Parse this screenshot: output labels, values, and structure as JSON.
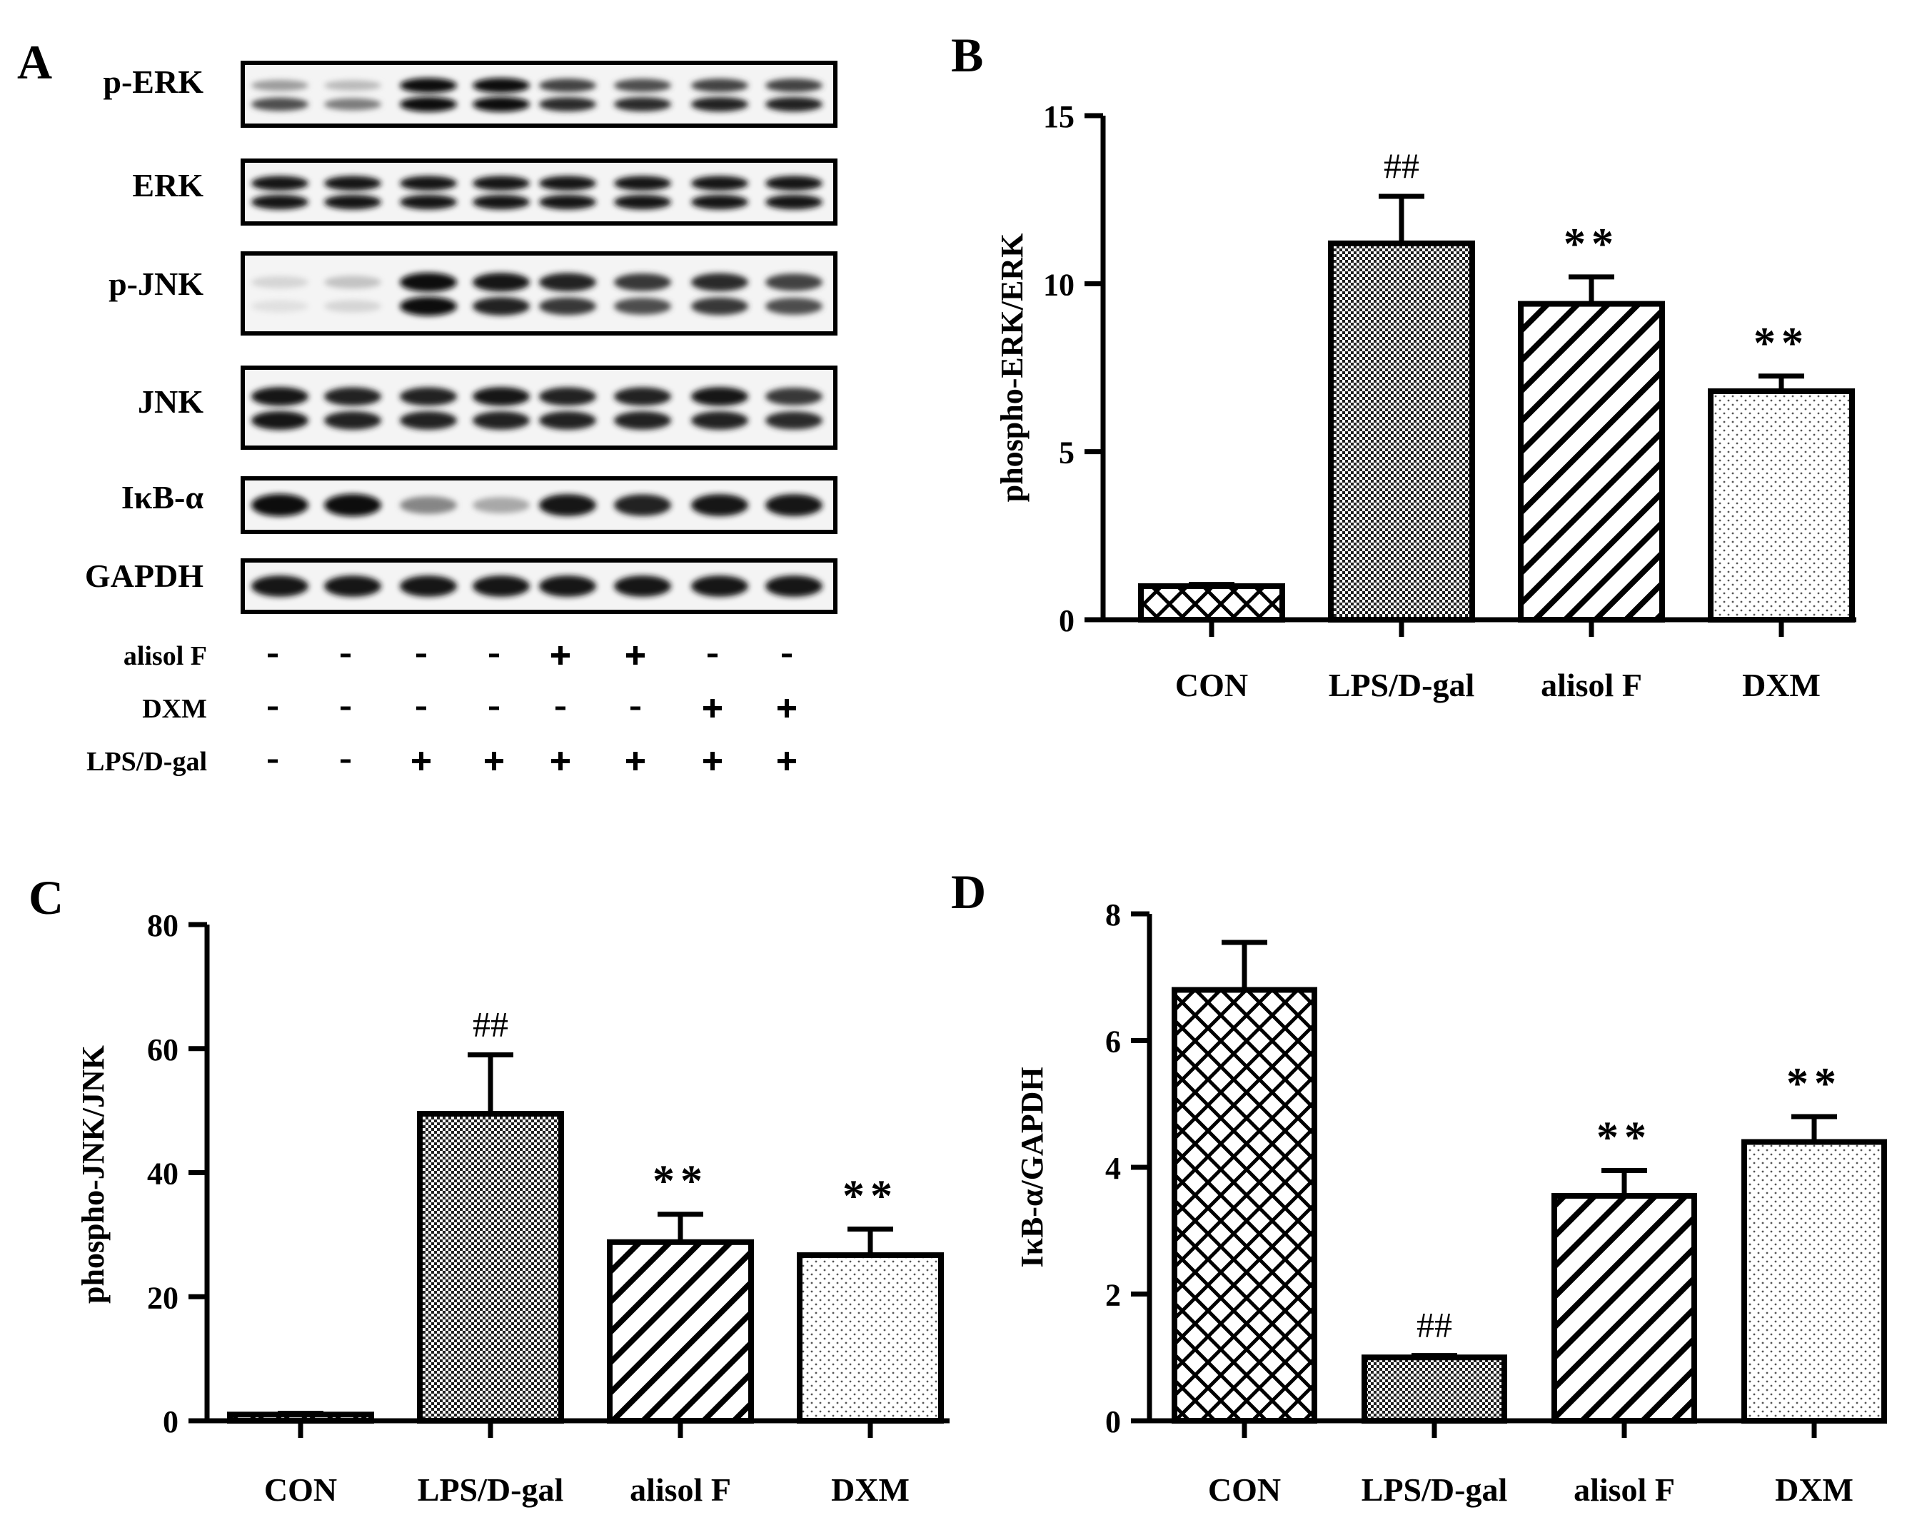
{
  "panel_letters": [
    "A",
    "B",
    "C",
    "D"
  ],
  "blot": {
    "rows": [
      {
        "label": "p-ERK",
        "lanes": [
          [
            0.35,
            0.7
          ],
          [
            0.22,
            0.5
          ],
          [
            1,
            1
          ],
          [
            1,
            1
          ],
          [
            0.75,
            0.85
          ],
          [
            0.7,
            0.85
          ],
          [
            0.75,
            0.9
          ],
          [
            0.75,
            0.9
          ]
        ]
      },
      {
        "label": "ERK",
        "lanes": [
          [
            0.95,
            0.95
          ],
          [
            0.95,
            0.95
          ],
          [
            0.95,
            0.95
          ],
          [
            0.95,
            0.95
          ],
          [
            0.95,
            0.95
          ],
          [
            0.95,
            0.95
          ],
          [
            0.95,
            0.95
          ],
          [
            0.95,
            0.95
          ]
        ]
      },
      {
        "label": "p-JNK",
        "lanes": [
          [
            0.1,
            0.05
          ],
          [
            0.18,
            0.1
          ],
          [
            1,
            1
          ],
          [
            0.95,
            0.9
          ],
          [
            0.9,
            0.8
          ],
          [
            0.8,
            0.7
          ],
          [
            0.85,
            0.8
          ],
          [
            0.75,
            0.7
          ]
        ]
      },
      {
        "label": "JNK",
        "lanes": [
          [
            0.95,
            0.95
          ],
          [
            0.9,
            0.9
          ],
          [
            0.9,
            0.9
          ],
          [
            0.95,
            0.9
          ],
          [
            0.9,
            0.9
          ],
          [
            0.9,
            0.9
          ],
          [
            0.95,
            0.9
          ],
          [
            0.8,
            0.85
          ]
        ]
      },
      {
        "label": "IκB-α",
        "lanes": [
          [
            1
          ],
          [
            1
          ],
          [
            0.45
          ],
          [
            0.3
          ],
          [
            0.95
          ],
          [
            0.9
          ],
          [
            0.95
          ],
          [
            0.95
          ]
        ]
      },
      {
        "label": "GAPDH",
        "lanes": [
          [
            0.95
          ],
          [
            0.95
          ],
          [
            0.95
          ],
          [
            0.95
          ],
          [
            0.95
          ],
          [
            0.95
          ],
          [
            0.95
          ],
          [
            0.95
          ]
        ]
      }
    ],
    "treatments": [
      {
        "label": "alisol F",
        "signs": [
          "-",
          "-",
          "-",
          "-",
          "+",
          "+",
          "-",
          "-"
        ]
      },
      {
        "label": "DXM",
        "signs": [
          "-",
          "-",
          "-",
          "-",
          "-",
          "-",
          "+",
          "+"
        ]
      },
      {
        "label": "LPS/D-gal",
        "signs": [
          "-",
          "-",
          "+",
          "+",
          "+",
          "+",
          "+",
          "+"
        ]
      }
    ]
  },
  "chart_data": [
    {
      "panel": "B",
      "type": "bar",
      "ylabel": "phospho-ERK/ERK",
      "categories": [
        "CON",
        "LPS/D-gal",
        "alisol F",
        "DXM"
      ],
      "values": [
        1.0,
        11.2,
        9.4,
        6.8
      ],
      "errors": [
        0.05,
        1.4,
        0.8,
        0.45
      ],
      "annotations": [
        "",
        "##",
        "**",
        "**"
      ],
      "patterns": [
        "crosshatch",
        "dense-dots",
        "diagonal",
        "sparse-dots"
      ],
      "ylim": [
        0,
        15
      ],
      "yticks": [
        0,
        5,
        10,
        15
      ]
    },
    {
      "panel": "C",
      "type": "bar",
      "ylabel": "phospho-JNK/JNK",
      "categories": [
        "CON",
        "LPS/D-gal",
        "alisol F",
        "DXM"
      ],
      "values": [
        1.0,
        49.5,
        28.8,
        26.7
      ],
      "errors": [
        0.2,
        9.5,
        4.5,
        4.2
      ],
      "annotations": [
        "",
        "##",
        "**",
        "**"
      ],
      "patterns": [
        "crosshatch",
        "dense-dots",
        "diagonal",
        "sparse-dots"
      ],
      "ylim": [
        0,
        80
      ],
      "yticks": [
        0,
        20,
        40,
        60,
        80
      ]
    },
    {
      "panel": "D",
      "type": "bar",
      "ylabel": "IκB-α/GAPDH",
      "categories": [
        "CON",
        "LPS/D-gal",
        "alisol F",
        "DXM"
      ],
      "values": [
        6.8,
        1.0,
        3.55,
        4.4
      ],
      "errors": [
        0.75,
        0.03,
        0.4,
        0.4
      ],
      "annotations": [
        "",
        "##",
        "**",
        "**"
      ],
      "patterns": [
        "crosshatch",
        "dense-dots",
        "diagonal",
        "sparse-dots"
      ],
      "ylim": [
        0,
        8
      ],
      "yticks": [
        0,
        2,
        4,
        6,
        8
      ]
    }
  ]
}
